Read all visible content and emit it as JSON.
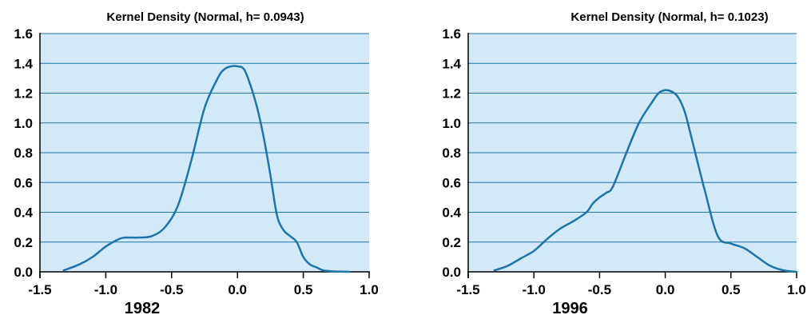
{
  "colors": {
    "plot_background": "#d3e9f7",
    "gridline": "#1c75aa",
    "curve": "#1c75aa",
    "axis": "#000000"
  },
  "chart_data": [
    {
      "type": "line",
      "title": "Kernel Density (Normal, h= 0.0943)",
      "xlabel": "1982",
      "ylabel": "",
      "xlim": [
        -1.5,
        1.0
      ],
      "ylim": [
        0.0,
        1.6
      ],
      "x_ticks": [
        "-1.5",
        "-1.0",
        "-0.5",
        "0.0",
        "0.5",
        "1.0"
      ],
      "y_ticks": [
        "0.0",
        "0.2",
        "0.4",
        "0.6",
        "0.8",
        "1.0",
        "1.2",
        "1.4",
        "1.6"
      ],
      "grid": true,
      "legend": "none",
      "series": [
        {
          "x": [
            -1.32,
            -1.2,
            -1.1,
            -1.0,
            -0.9,
            -0.85,
            -0.75,
            -0.65,
            -0.55,
            -0.45,
            -0.35,
            -0.25,
            -0.15,
            -0.1,
            -0.05,
            0.0,
            0.05,
            0.1,
            0.15,
            0.2,
            0.25,
            0.3,
            0.35,
            0.4,
            0.45,
            0.5,
            0.55,
            0.6,
            0.65,
            0.7,
            0.75,
            0.8,
            0.85
          ],
          "y": [
            0.01,
            0.05,
            0.1,
            0.17,
            0.22,
            0.23,
            0.23,
            0.24,
            0.3,
            0.45,
            0.75,
            1.1,
            1.3,
            1.36,
            1.38,
            1.38,
            1.36,
            1.25,
            1.1,
            0.9,
            0.65,
            0.38,
            0.28,
            0.24,
            0.2,
            0.1,
            0.05,
            0.03,
            0.01,
            0.005,
            0.002,
            0.001,
            0.0
          ]
        }
      ]
    },
    {
      "type": "line",
      "title": "Kernel Density (Normal, h= 0.1023)",
      "xlabel": "1996",
      "ylabel": "",
      "xlim": [
        -1.5,
        1.0
      ],
      "ylim": [
        0.0,
        1.6
      ],
      "x_ticks": [
        "-1.5",
        "-1.0",
        "-0.5",
        "0.0",
        "0.5",
        "1.0"
      ],
      "y_ticks": [
        "0.0",
        "0.2",
        "0.4",
        "0.6",
        "0.8",
        "1.0",
        "1.2",
        "1.4",
        "1.6"
      ],
      "grid": true,
      "legend": "none",
      "series": [
        {
          "x": [
            -1.3,
            -1.2,
            -1.1,
            -1.0,
            -0.9,
            -0.8,
            -0.7,
            -0.6,
            -0.55,
            -0.5,
            -0.45,
            -0.4,
            -0.3,
            -0.2,
            -0.1,
            -0.05,
            0.0,
            0.05,
            0.1,
            0.15,
            0.2,
            0.3,
            0.4,
            0.5,
            0.6,
            0.7,
            0.8,
            0.9,
            1.0
          ],
          "y": [
            0.01,
            0.04,
            0.09,
            0.14,
            0.22,
            0.29,
            0.34,
            0.4,
            0.46,
            0.5,
            0.53,
            0.57,
            0.79,
            1.0,
            1.14,
            1.2,
            1.22,
            1.21,
            1.17,
            1.07,
            0.9,
            0.55,
            0.24,
            0.19,
            0.16,
            0.1,
            0.04,
            0.01,
            0.0
          ]
        }
      ]
    }
  ]
}
